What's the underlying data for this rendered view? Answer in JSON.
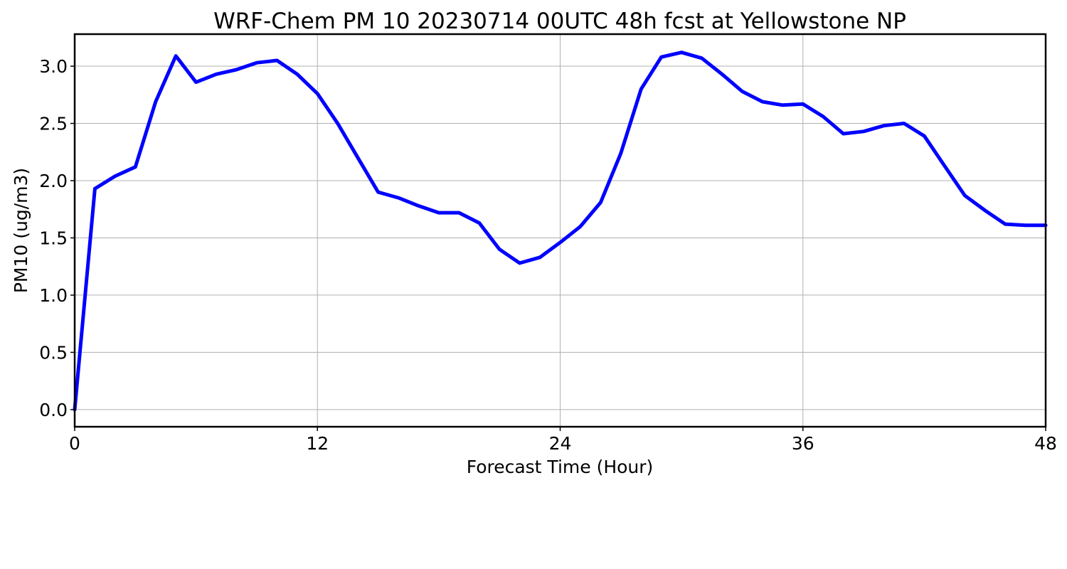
{
  "chart_data": {
    "type": "line",
    "title": "WRF-Chem PM 10  20230714 00UTC 48h fcst at Yellowstone NP",
    "xlabel": "Forecast Time (Hour)",
    "ylabel": "PM10  (ug/m3)",
    "xlim": [
      0,
      48
    ],
    "ylim": [
      -0.15,
      3.28
    ],
    "xticks": [
      0,
      12,
      24,
      36,
      48
    ],
    "yticks": [
      0.0,
      0.5,
      1.0,
      1.5,
      2.0,
      2.5,
      3.0
    ],
    "xtick_labels": [
      "0",
      "12",
      "24",
      "36",
      "48"
    ],
    "ytick_labels": [
      "0.0",
      "0.5",
      "1.0",
      "1.5",
      "2.0",
      "2.5",
      "3.0"
    ],
    "grid": true,
    "legend": "none",
    "series": [
      {
        "color": "#0000ff",
        "x": [
          0,
          1,
          2,
          3,
          4,
          5,
          6,
          7,
          8,
          9,
          10,
          11,
          12,
          13,
          14,
          15,
          16,
          17,
          18,
          19,
          20,
          21,
          22,
          23,
          24,
          25,
          26,
          27,
          28,
          29,
          30,
          31,
          32,
          33,
          34,
          35,
          36,
          37,
          38,
          39,
          40,
          41,
          42,
          43,
          44,
          45,
          46,
          47,
          48
        ],
        "y": [
          0.0,
          1.93,
          2.04,
          2.12,
          2.69,
          3.09,
          2.86,
          2.93,
          2.97,
          3.03,
          3.05,
          2.93,
          2.76,
          2.5,
          2.2,
          1.9,
          1.85,
          1.78,
          1.72,
          1.72,
          1.63,
          1.4,
          1.28,
          1.33,
          1.46,
          1.6,
          1.81,
          2.24,
          2.8,
          3.08,
          3.12,
          3.07,
          2.93,
          2.78,
          2.69,
          2.66,
          2.67,
          2.56,
          2.41,
          2.43,
          2.48,
          2.5,
          2.39,
          2.13,
          1.87,
          1.74,
          1.62,
          1.61,
          1.61
        ]
      }
    ]
  }
}
